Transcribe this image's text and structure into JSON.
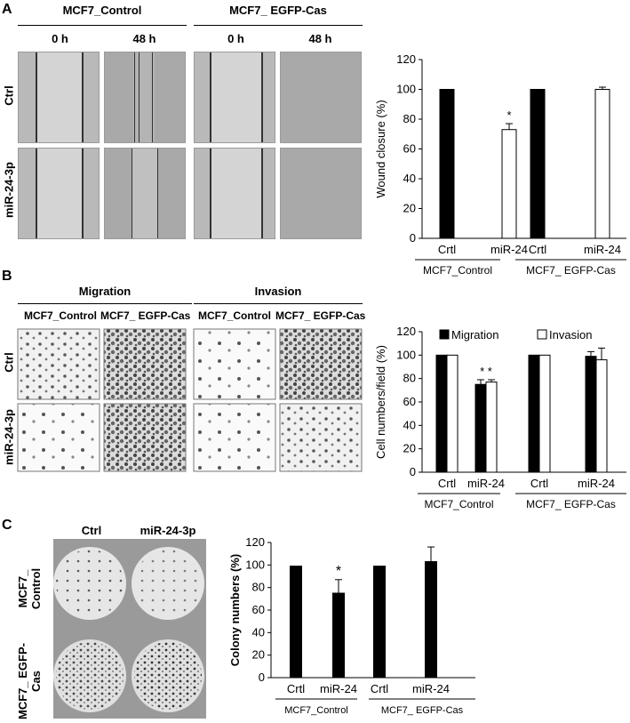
{
  "panels": {
    "A": {
      "label": "A",
      "group_left": "MCF7_Control",
      "group_right": "MCF7_ EGFP-Cas",
      "times": [
        "0 h",
        "48 h",
        "0 h",
        "48 h"
      ],
      "rows": [
        "Ctrl",
        "miR-24-3p"
      ]
    },
    "B": {
      "label": "B",
      "group_left": "Migration",
      "group_right": "Invasion",
      "subgroups": [
        "MCF7_Control",
        "MCF7_ EGFP-Cas",
        "MCF7_Control",
        "MCF7_ EGFP-Cas"
      ],
      "rows": [
        "Ctrl",
        "miR-24-3p"
      ]
    },
    "C": {
      "label": "C",
      "cols": [
        "Ctrl",
        "miR-24-3p"
      ],
      "rows": [
        "MCF7_ Control",
        "MCF7_ EGFP-Cas"
      ]
    }
  },
  "chart_data": [
    {
      "type": "bar",
      "panel": "A",
      "categories": [
        "Crtl",
        "miR-24",
        "Crtl",
        "miR-24"
      ],
      "groups": [
        "MCF7_Control",
        "MCF7_ EGFP-Cas"
      ],
      "series": [
        {
          "values": [
            100,
            73,
            100,
            100
          ],
          "errors": [
            0,
            4,
            0,
            1.5
          ],
          "colors": [
            "#000000",
            "#ffffff",
            "#000000",
            "#ffffff"
          ]
        }
      ],
      "significance": [
        "",
        "*",
        "",
        ""
      ],
      "ylabel": "Wound closure (%)",
      "ylim": [
        0,
        120
      ],
      "yticks": [
        0,
        20,
        40,
        60,
        80,
        100,
        120
      ]
    },
    {
      "type": "bar",
      "panel": "B",
      "categories": [
        "Crtl",
        "miR-24",
        "Crtl",
        "miR-24"
      ],
      "groups": [
        "MCF7_Control",
        "MCF7_ EGFP-Cas"
      ],
      "series": [
        {
          "name": "Migration",
          "values": [
            100,
            75,
            100,
            99
          ],
          "errors": [
            0,
            4,
            0,
            4
          ],
          "color": "#000000"
        },
        {
          "name": "Invasion",
          "values": [
            100,
            77,
            100,
            96
          ],
          "errors": [
            0,
            2,
            0,
            10
          ],
          "color": "#ffffff"
        }
      ],
      "significance": [
        "",
        "* *",
        "",
        ""
      ],
      "ylabel": "Cell numbers/field (%)",
      "ylim": [
        0,
        120
      ],
      "yticks": [
        0,
        20,
        40,
        60,
        80,
        100,
        120
      ],
      "legend": "top"
    },
    {
      "type": "bar",
      "panel": "C",
      "categories": [
        "Crtl",
        "miR-24",
        "Crtl",
        "miR-24"
      ],
      "groups": [
        "MCF7_Control",
        "MCF7_ EGFP-Cas"
      ],
      "series": [
        {
          "values": [
            99,
            75,
            99,
            103
          ],
          "errors": [
            0,
            12,
            0,
            13
          ],
          "colors": [
            "#000000",
            "#000000",
            "#000000",
            "#000000"
          ]
        }
      ],
      "significance": [
        "",
        "*",
        "",
        ""
      ],
      "ylabel": "Colony numbers (%)",
      "ylim": [
        0,
        120
      ],
      "yticks": [
        0,
        20,
        40,
        60,
        80,
        100,
        120
      ]
    }
  ]
}
